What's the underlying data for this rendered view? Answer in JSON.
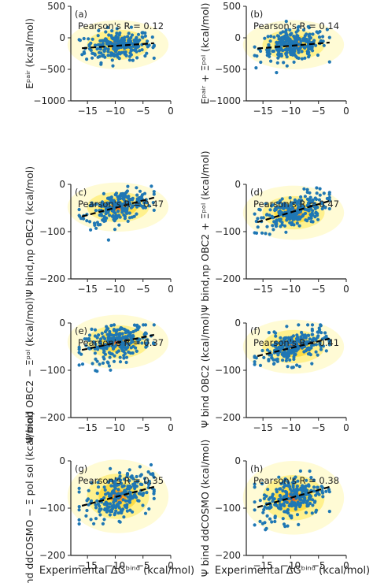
{
  "figure": {
    "shared_xlabel": "Experimental ΔGᵇⁱⁿᵈ (kcal/mol)",
    "colors": {
      "points": "#1f77b4",
      "fit": "#000000",
      "density_low": "#fffbd0",
      "density_mid": "#fdd835",
      "density_high": "#d32f2f"
    }
  },
  "chart_data": [
    {
      "type": "scatter",
      "panel": "(a)",
      "annotation": "Pearson's R = 0.12",
      "ylabel": "Eᵖᵃⁱʳ (kcal/mol)",
      "xlim": [
        -18,
        0
      ],
      "ylim": [
        -1000,
        500
      ],
      "xticks": [
        -15,
        -10,
        -5,
        0
      ],
      "yticks": [
        500,
        0,
        -500,
        -1000
      ],
      "fit": {
        "x": [
          -16,
          -3
        ],
        "y": [
          -165,
          -85
        ]
      },
      "cloud": {
        "center": [
          -9.5,
          -110
        ],
        "spread": [
          3.5,
          150
        ]
      },
      "pearson_r": 0.12
    },
    {
      "type": "scatter",
      "panel": "(b)",
      "annotation": "Pearson's R = 0.14",
      "ylabel": "Eᵖᵃⁱʳ + Ξᵖᵒˡ (kcal/mol)",
      "xlim": [
        -18,
        0
      ],
      "ylim": [
        -1000,
        500
      ],
      "xticks": [
        -15,
        -10,
        -5,
        0
      ],
      "yticks": [
        500,
        0,
        -500,
        -1000
      ],
      "fit": {
        "x": [
          -16,
          -3
        ],
        "y": [
          -170,
          -75
        ]
      },
      "cloud": {
        "center": [
          -9.5,
          -110
        ],
        "spread": [
          3.5,
          150
        ]
      },
      "pearson_r": 0.14
    },
    {
      "type": "scatter",
      "panel": "(c)",
      "annotation": "Pearson's R = 0.47",
      "ylabel": "Ψ bind,np OBC2 (kcal/mol)",
      "xlim": [
        -18,
        0
      ],
      "ylim": [
        -200,
        0
      ],
      "xticks": [
        -15,
        -10,
        -5,
        0
      ],
      "yticks": [
        0,
        -100,
        -200
      ],
      "fit": {
        "x": [
          -16,
          -3
        ],
        "y": [
          -68,
          -28
        ]
      },
      "cloud": {
        "center": [
          -9.5,
          -48
        ],
        "spread": [
          3.5,
          20
        ]
      },
      "pearson_r": 0.47
    },
    {
      "type": "scatter",
      "panel": "(d)",
      "annotation": "Pearson's R = 0.47",
      "ylabel": "Ψ bind,np OBC2 + Ξᵖᵒˡ (kcal/mol)",
      "xlim": [
        -18,
        0
      ],
      "ylim": [
        -200,
        0
      ],
      "xticks": [
        -15,
        -10,
        -5,
        0
      ],
      "yticks": [
        0,
        -100,
        -200
      ],
      "fit": {
        "x": [
          -16,
          -3
        ],
        "y": [
          -80,
          -35
        ]
      },
      "cloud": {
        "center": [
          -9.5,
          -60
        ],
        "spread": [
          3.5,
          22
        ]
      },
      "pearson_r": 0.47
    },
    {
      "type": "scatter",
      "panel": "(e)",
      "annotation": "Pearson's R = 0.37",
      "ylabel": "Ψ bind OBC2 − Ξᵖᵒˡ (kcal/mol)",
      "xlim": [
        -18,
        0
      ],
      "ylim": [
        -200,
        0
      ],
      "xticks": [
        -15,
        -10,
        -5,
        0
      ],
      "yticks": [
        0,
        -100,
        -200
      ],
      "fit": {
        "x": [
          -16,
          -3
        ],
        "y": [
          -57,
          -25
        ]
      },
      "cloud": {
        "center": [
          -9.5,
          -40
        ],
        "spread": [
          3.5,
          22
        ]
      },
      "pearson_r": 0.37
    },
    {
      "type": "scatter",
      "panel": "(f)",
      "annotation": "Pearson's R = 0.41",
      "ylabel": "Ψ bind OBC2 (kcal/mol)",
      "xlim": [
        -18,
        0
      ],
      "ylim": [
        -200,
        0
      ],
      "xticks": [
        -15,
        -10,
        -5,
        0
      ],
      "yticks": [
        0,
        -100,
        -200
      ],
      "fit": {
        "x": [
          -16,
          -3
        ],
        "y": [
          -70,
          -33
        ]
      },
      "cloud": {
        "center": [
          -9.5,
          -50
        ],
        "spread": [
          3.5,
          22
        ]
      },
      "pearson_r": 0.41
    },
    {
      "type": "scatter",
      "panel": "(g)",
      "annotation": "Pearson's R = 0.35",
      "ylabel": "Ψ bind ddCOSMO − Ξ pol sol (kcal/mol)",
      "xlim": [
        -18,
        0
      ],
      "ylim": [
        -200,
        0
      ],
      "xticks": [
        -15,
        -10,
        -5,
        0
      ],
      "yticks": [
        0,
        -100,
        -200
      ],
      "fit": {
        "x": [
          -16,
          -3
        ],
        "y": [
          -95,
          -55
        ]
      },
      "cloud": {
        "center": [
          -9.5,
          -75
        ],
        "spread": [
          3.5,
          30
        ]
      },
      "pearson_r": 0.35
    },
    {
      "type": "scatter",
      "panel": "(h)",
      "annotation": "Pearson's R = 0.38",
      "ylabel": "Ψ bind ddCOSMO (kcal/mol)",
      "xlim": [
        -18,
        0
      ],
      "ylim": [
        -200,
        0
      ],
      "xticks": [
        -15,
        -10,
        -5,
        0
      ],
      "yticks": [
        0,
        -100,
        -200
      ],
      "fit": {
        "x": [
          -16,
          -3
        ],
        "y": [
          -98,
          -55
        ]
      },
      "cloud": {
        "center": [
          -9.5,
          -78
        ],
        "spread": [
          3.5,
          30
        ]
      },
      "pearson_r": 0.38
    }
  ]
}
